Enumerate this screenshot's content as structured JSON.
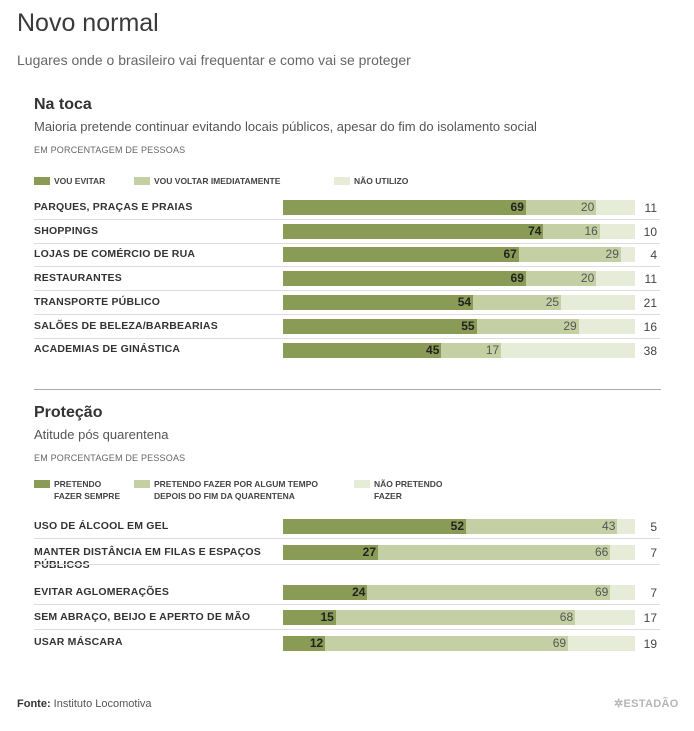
{
  "header": {
    "title": "Novo normal",
    "subtitle": "Lugares onde o brasileiro vai frequentar e como vai se proteger"
  },
  "colors": {
    "a": "#8a9b55",
    "b": "#c5cfa4",
    "c": "#e7ecd8"
  },
  "sections": [
    {
      "title": "Na toca",
      "subtitle": "Maioria pretende continuar evitando locais públicos, apesar do fim do isolamento social",
      "unit": "EM PORCENTAGEM DE PESSOAS",
      "legend": [
        "VOU EVITAR",
        "VOU VOLTAR IMEDIATAMENTE",
        "NÃO UTILIZO"
      ]
    },
    {
      "title": "Proteção",
      "subtitle": "Atitude pós quarentena",
      "unit": "EM PORCENTAGEM DE PESSOAS",
      "legend": [
        "PRETENDO\nFAZER SEMPRE",
        "PRETENDO FAZER POR ALGUM TEMPO\nDEPOIS DO FIM DA QUARENTENA",
        "NÃO PRETENDO\nFAZER"
      ]
    }
  ],
  "chart_data": [
    {
      "type": "bar",
      "stacked": true,
      "orientation": "horizontal",
      "title": "Na toca",
      "categories": [
        "PARQUES, PRAÇAS E PRAIAS",
        "SHOPPINGS",
        "LOJAS DE COMÉRCIO DE RUA",
        "RESTAURANTES",
        "TRANSPORTE PÚBLICO",
        "SALÕES DE BELEZA/BARBEARIAS",
        "ACADEMIAS DE GINÁSTICA"
      ],
      "series": [
        {
          "name": "VOU EVITAR",
          "values": [
            69,
            74,
            67,
            69,
            54,
            55,
            45
          ]
        },
        {
          "name": "VOU VOLTAR IMEDIATAMENTE",
          "values": [
            20,
            16,
            29,
            20,
            25,
            29,
            17
          ]
        },
        {
          "name": "NÃO UTILIZO",
          "values": [
            11,
            10,
            4,
            11,
            21,
            16,
            38
          ]
        }
      ]
    },
    {
      "type": "bar",
      "stacked": true,
      "orientation": "horizontal",
      "title": "Proteção",
      "categories": [
        "USO DE ÁLCOOL EM GEL",
        "MANTER DISTÂNCIA EM FILAS E ESPAÇOS\nPÚBLICOS",
        "EVITAR AGLOMERAÇÕES",
        "SEM ABRAÇO, BEIJO E APERTO DE MÃO",
        "USAR MÁSCARA"
      ],
      "series": [
        {
          "name": "PRETENDO FAZER SEMPRE",
          "values": [
            52,
            27,
            24,
            15,
            12
          ]
        },
        {
          "name": "PRETENDO FAZER POR ALGUM TEMPO DEPOIS DO FIM DA QUARENTENA",
          "values": [
            43,
            66,
            69,
            68,
            69
          ]
        },
        {
          "name": "NÃO PRETENDO FAZER",
          "values": [
            5,
            7,
            7,
            17,
            19
          ]
        }
      ]
    }
  ],
  "footer": {
    "source_label": "Fonte:",
    "source_text": "Instituto Locomotiva",
    "brand": "ESTADÃO"
  }
}
